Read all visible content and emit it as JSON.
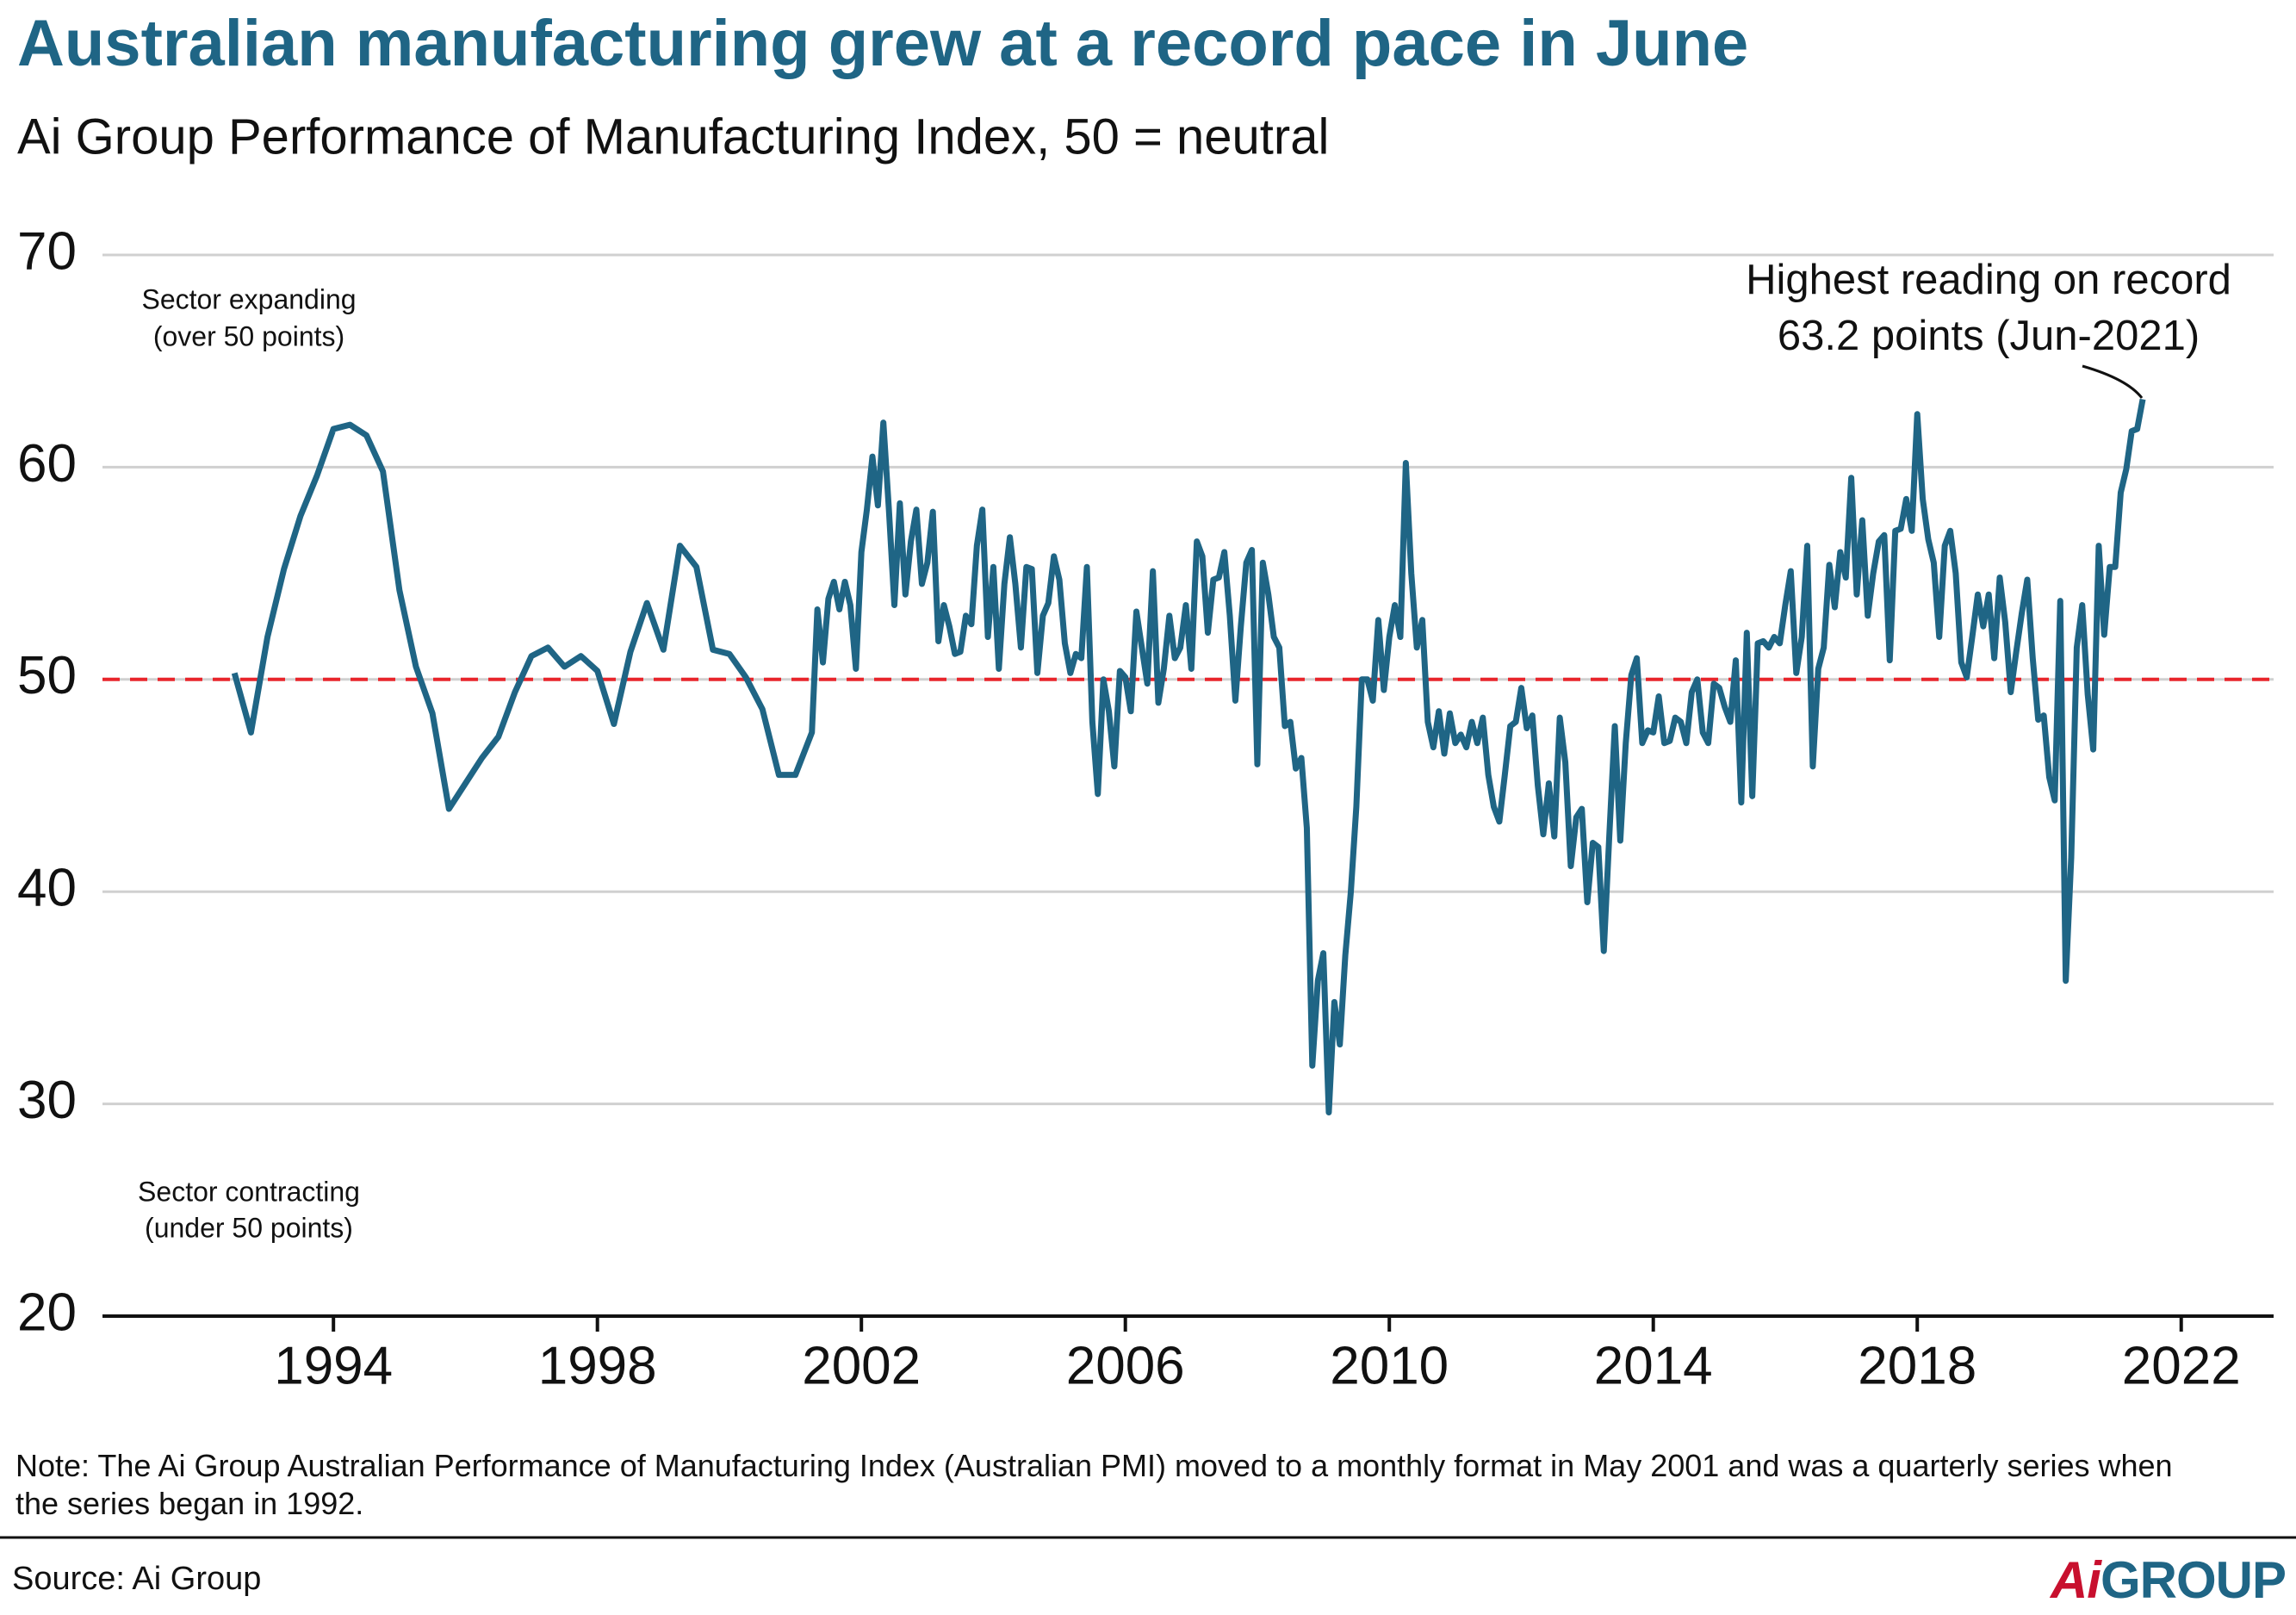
{
  "chart_data": {
    "type": "line",
    "title": "Australian manufacturing grew at a record pace in June",
    "subtitle": "Ai Group Performance of Manufacturing Index, 50 = neutral",
    "note": "Note: The Ai Group Australian Performance of Manufacturing Index (Australian PMI) moved to a monthly format in May 2001 and was a quarterly series when the series began in 1992.",
    "source": "Source: Ai Group",
    "logo": {
      "mark": "Ai",
      "text": "GROUP"
    },
    "annotations": {
      "record": [
        "Highest reading on record",
        "63.2 points (Jun-2021)"
      ],
      "expanding": [
        "Sector expanding",
        "(over 50 points)"
      ],
      "contracting": [
        "Sector contracting",
        "(under 50 points)"
      ]
    },
    "reference_line": {
      "value": 50,
      "color": "#e8252b"
    },
    "color": "#1f6585",
    "grid": true,
    "xlim": [
      1990.5,
      2023.4
    ],
    "xticks": [
      1994,
      1998,
      2002,
      2006,
      2010,
      2014,
      2018,
      2022
    ],
    "ylim": [
      20,
      70
    ],
    "yticks": [
      20,
      30,
      40,
      50,
      60,
      70
    ],
    "x": [
      1992.5,
      1992.75,
      1993,
      1993.25,
      1993.5,
      1993.75,
      1994,
      1994.25,
      1994.5,
      1994.75,
      1995,
      1995.25,
      1995.5,
      1995.75,
      1996,
      1996.25,
      1996.5,
      1996.75,
      1997,
      1997.25,
      1997.5,
      1997.75,
      1998,
      1998.25,
      1998.5,
      1998.75,
      1999,
      1999.25,
      1999.5,
      1999.75,
      2000,
      2000.25,
      2000.5,
      2000.75,
      2001,
      2001.25,
      2001.333,
      2001.417,
      2001.5,
      2001.583,
      2001.667,
      2001.75,
      2001.833,
      2001.917,
      2002,
      2002.083,
      2002.167,
      2002.25,
      2002.333,
      2002.417,
      2002.5,
      2002.583,
      2002.667,
      2002.75,
      2002.833,
      2002.917,
      2003,
      2003.083,
      2003.167,
      2003.25,
      2003.333,
      2003.417,
      2003.5,
      2003.583,
      2003.667,
      2003.75,
      2003.833,
      2003.917,
      2004,
      2004.083,
      2004.167,
      2004.25,
      2004.333,
      2004.417,
      2004.5,
      2004.583,
      2004.667,
      2004.75,
      2004.833,
      2004.917,
      2005,
      2005.083,
      2005.167,
      2005.25,
      2005.333,
      2005.417,
      2005.5,
      2005.583,
      2005.667,
      2005.75,
      2005.833,
      2005.917,
      2006,
      2006.083,
      2006.167,
      2006.25,
      2006.333,
      2006.417,
      2006.5,
      2006.583,
      2006.667,
      2006.75,
      2006.833,
      2006.917,
      2007,
      2007.083,
      2007.167,
      2007.25,
      2007.333,
      2007.417,
      2007.5,
      2007.583,
      2007.667,
      2007.75,
      2007.833,
      2007.917,
      2008,
      2008.083,
      2008.167,
      2008.25,
      2008.333,
      2008.417,
      2008.5,
      2008.583,
      2008.667,
      2008.75,
      2008.833,
      2008.917,
      2009,
      2009.083,
      2009.167,
      2009.25,
      2009.333,
      2009.417,
      2009.5,
      2009.583,
      2009.667,
      2009.75,
      2009.833,
      2009.917,
      2010,
      2010.083,
      2010.167,
      2010.25,
      2010.333,
      2010.417,
      2010.5,
      2010.583,
      2010.667,
      2010.75,
      2010.833,
      2010.917,
      2011,
      2011.083,
      2011.167,
      2011.25,
      2011.333,
      2011.417,
      2011.5,
      2011.583,
      2011.667,
      2011.75,
      2011.833,
      2011.917,
      2012,
      2012.083,
      2012.167,
      2012.25,
      2012.333,
      2012.417,
      2012.5,
      2012.583,
      2012.667,
      2012.75,
      2012.833,
      2012.917,
      2013,
      2013.083,
      2013.167,
      2013.25,
      2013.333,
      2013.417,
      2013.5,
      2013.583,
      2013.667,
      2013.75,
      2013.833,
      2013.917,
      2014,
      2014.083,
      2014.167,
      2014.25,
      2014.333,
      2014.417,
      2014.5,
      2014.583,
      2014.667,
      2014.75,
      2014.833,
      2014.917,
      2015,
      2015.083,
      2015.167,
      2015.25,
      2015.333,
      2015.417,
      2015.5,
      2015.583,
      2015.667,
      2015.75,
      2015.833,
      2015.917,
      2016,
      2016.083,
      2016.167,
      2016.25,
      2016.333,
      2016.417,
      2016.5,
      2016.583,
      2016.667,
      2016.75,
      2016.833,
      2016.917,
      2017,
      2017.083,
      2017.167,
      2017.25,
      2017.333,
      2017.417,
      2017.5,
      2017.583,
      2017.667,
      2017.75,
      2017.833,
      2017.917,
      2018,
      2018.083,
      2018.167,
      2018.25,
      2018.333,
      2018.417,
      2018.5,
      2018.583,
      2018.667,
      2018.75,
      2018.833,
      2018.917,
      2019,
      2019.083,
      2019.167,
      2019.25,
      2019.333,
      2019.417,
      2019.5,
      2019.583,
      2019.667,
      2019.75,
      2019.833,
      2019.917,
      2020,
      2020.083,
      2020.167,
      2020.25,
      2020.333,
      2020.417,
      2020.5,
      2020.583,
      2020.667,
      2020.75,
      2020.833,
      2020.917,
      2021,
      2021.083,
      2021.167,
      2021.25,
      2021.333,
      2021.417
    ],
    "values": [
      50.3,
      47.5,
      52,
      55.2,
      57.7,
      59.6,
      61.8,
      62,
      61.5,
      59.8,
      54.2,
      50.6,
      48.4,
      43.9,
      45.1,
      46.3,
      47.3,
      49.4,
      51.1,
      51.5,
      50.6,
      51.1,
      50.4,
      47.9,
      51.3,
      53.6,
      51.4,
      56.3,
      55.3,
      51.4,
      51.2,
      50.1,
      48.6,
      45.5,
      45.5,
      47.5,
      53.3,
      50.8,
      53.8,
      54.6,
      53.3,
      54.6,
      53.5,
      50.5,
      56,
      58,
      60.5,
      58.2,
      62.1,
      58,
      53.5,
      58.3,
      54,
      56.5,
      58,
      54.5,
      55.5,
      57.9,
      51.8,
      53.5,
      52.5,
      51.2,
      51.3,
      53,
      52.6,
      56.3,
      58,
      52,
      55.3,
      50.5,
      54.5,
      56.7,
      54.5,
      51.5,
      55.3,
      55.2,
      50.3,
      53,
      53.6,
      55.8,
      54.7,
      51.7,
      50.3,
      51.2,
      51,
      55.3,
      48,
      44.6,
      50,
      48.5,
      45.9,
      50.4,
      50.1,
      48.5,
      53.2,
      51.5,
      49.8,
      55.1,
      48.9,
      50.5,
      53,
      51,
      51.5,
      53.5,
      50.5,
      56.5,
      55.8,
      52.2,
      54.7,
      54.8,
      56,
      53,
      49,
      52.5,
      55.5,
      56.1,
      46,
      55.5,
      54,
      52,
      51.5,
      47.8,
      48,
      45.8,
      46.3,
      43,
      31.8,
      35.8,
      37.1,
      29.6,
      34.8,
      32.8,
      37,
      40,
      44,
      50,
      50,
      49,
      52.8,
      49.5,
      52,
      53.5,
      52,
      60.2,
      55,
      51.5,
      52.8,
      48,
      46.8,
      48.5,
      46.5,
      48.4,
      47,
      47.4,
      46.8,
      48,
      47,
      48.2,
      45.5,
      44,
      43.3,
      45.5,
      47.8,
      48,
      49.6,
      47.7,
      48.3,
      45,
      42.7,
      45.1,
      42.6,
      48.2,
      46.1,
      41.2,
      43.5,
      43.9,
      39.5,
      42.3,
      42.1,
      37.2,
      42.6,
      47.8,
      42.4,
      47,
      50.2,
      51,
      47,
      47.6,
      47.5,
      49.2,
      47,
      47.1,
      48.2,
      48,
      47,
      49.4,
      50,
      47.5,
      47,
      49.8,
      49.6,
      48.7,
      48,
      50.9,
      44.2,
      52.2,
      44.5,
      51.7,
      51.8,
      51.5,
      52,
      51.7,
      53.5,
      55.1,
      50.3,
      52,
      56.3,
      45.9,
      50.5,
      51.5,
      55.4,
      53.4,
      56,
      54.8,
      59.5,
      54,
      57.5,
      53,
      55,
      56.5,
      56.8,
      50.9,
      57,
      57.1,
      58.5,
      57,
      62.5,
      58.5,
      56.6,
      55.5,
      52,
      56.3,
      57,
      55,
      50.8,
      50.1,
      52,
      54,
      52.5,
      54,
      51,
      54.8,
      52.7,
      49.4,
      51.3,
      53.1,
      54.7,
      51,
      48.1,
      48.3,
      45.4,
      44.3,
      53.7,
      35.8,
      41.6,
      51.5,
      53.5,
      49.3,
      46.7,
      56.3,
      52.1,
      55.3,
      55.3,
      58.8,
      59.9,
      61.7,
      61.8,
      63.2
    ]
  }
}
